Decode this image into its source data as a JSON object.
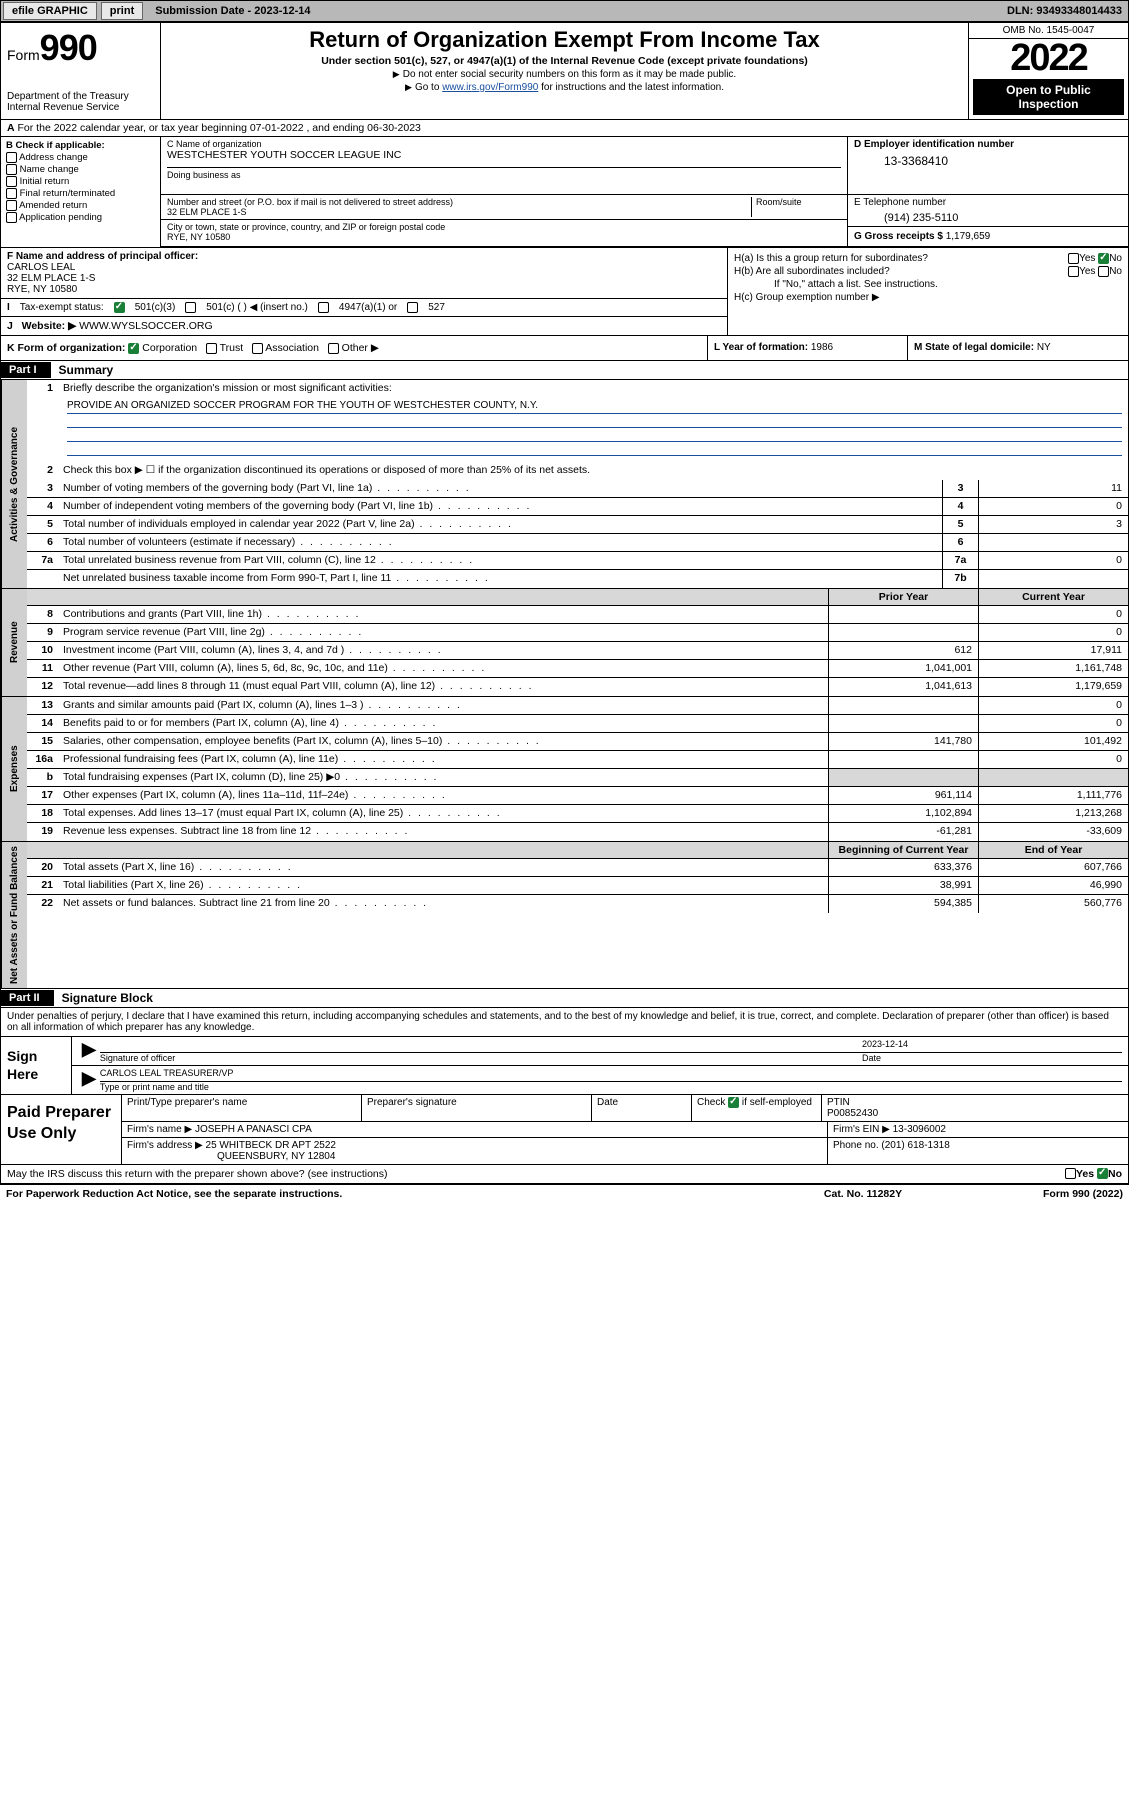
{
  "topbar": {
    "efile_label": "efile GRAPHIC",
    "print_btn": "print",
    "sub_date_label": "Submission Date - 2023-12-14",
    "dln": "DLN: 93493348014433"
  },
  "header": {
    "form_word": "Form",
    "form_num": "990",
    "dept": "Department of the Treasury",
    "irs": "Internal Revenue Service",
    "title": "Return of Organization Exempt From Income Tax",
    "subtitle": "Under section 501(c), 527, or 4947(a)(1) of the Internal Revenue Code (except private foundations)",
    "note1": "Do not enter social security numbers on this form as it may be made public.",
    "note2_pre": "Go to ",
    "note2_link": "www.irs.gov/Form990",
    "note2_post": " for instructions and the latest information.",
    "omb": "OMB No. 1545-0047",
    "year": "2022",
    "open": "Open to Public Inspection"
  },
  "line_a": "For the 2022 calendar year, or tax year beginning 07-01-2022   , and ending 06-30-2023",
  "col_b": {
    "label": "B Check if applicable:",
    "opts": [
      "Address change",
      "Name change",
      "Initial return",
      "Final return/terminated",
      "Amended return",
      "Application pending"
    ]
  },
  "col_c": {
    "name_label": "C Name of organization",
    "name": "WESTCHESTER YOUTH SOCCER LEAGUE INC",
    "dba_label": "Doing business as",
    "addr_label": "Number and street (or P.O. box if mail is not delivered to street address)",
    "room_label": "Room/suite",
    "addr": "32 ELM PLACE 1-S",
    "city_label": "City or town, state or province, country, and ZIP or foreign postal code",
    "city": "RYE, NY  10580",
    "ein_label": "D Employer identification number",
    "ein": "13-3368410",
    "tel_label": "E Telephone number",
    "tel": "(914) 235-5110",
    "gross_label": "G Gross receipts $",
    "gross": "1,179,659"
  },
  "block_f": {
    "label": "F  Name and address of principal officer:",
    "name": "CARLOS LEAL",
    "addr1": "32 ELM PLACE 1-S",
    "addr2": "RYE, NY  10580"
  },
  "block_h": {
    "ha": "H(a)  Is this a group return for subordinates?",
    "hb": "H(b)  Are all subordinates included?",
    "hb_note": "If \"No,\" attach a list. See instructions.",
    "hc": "H(c)  Group exemption number ▶",
    "yes": "Yes",
    "no": "No"
  },
  "block_i": {
    "label": "Tax-exempt status:",
    "o1": "501(c)(3)",
    "o2": "501(c) (  ) ◀ (insert no.)",
    "o3": "4947(a)(1) or",
    "o4": "527"
  },
  "block_j": {
    "label": "Website: ▶",
    "val": "WWW.WYSLSOCCER.ORG"
  },
  "block_k": {
    "label": "K Form of organization:",
    "o1": "Corporation",
    "o2": "Trust",
    "o3": "Association",
    "o4": "Other ▶"
  },
  "block_l": {
    "label": "L Year of formation:",
    "val": "1986"
  },
  "block_m": {
    "label": "M State of legal domicile:",
    "val": "NY"
  },
  "part1": {
    "hdr": "Part I",
    "title": "Summary",
    "l1_label": "Briefly describe the organization's mission or most significant activities:",
    "l1_text": "PROVIDE AN ORGANIZED SOCCER PROGRAM FOR THE YOUTH OF WESTCHESTER COUNTY, N.Y.",
    "l2": "Check this box ▶ ☐  if the organization discontinued its operations or disposed of more than 25% of its net assets.",
    "rows_gov": [
      {
        "n": "3",
        "t": "Number of voting members of the governing body (Part VI, line 1a)",
        "box": "3",
        "v": "11"
      },
      {
        "n": "4",
        "t": "Number of independent voting members of the governing body (Part VI, line 1b)",
        "box": "4",
        "v": "0"
      },
      {
        "n": "5",
        "t": "Total number of individuals employed in calendar year 2022 (Part V, line 2a)",
        "box": "5",
        "v": "3"
      },
      {
        "n": "6",
        "t": "Total number of volunteers (estimate if necessary)",
        "box": "6",
        "v": ""
      },
      {
        "n": "7a",
        "t": "Total unrelated business revenue from Part VIII, column (C), line 12",
        "box": "7a",
        "v": "0"
      },
      {
        "n": "",
        "t": "Net unrelated business taxable income from Form 990-T, Part I, line 11",
        "box": "7b",
        "v": ""
      }
    ],
    "col_prior": "Prior Year",
    "col_curr": "Current Year",
    "rows_rev": [
      {
        "n": "8",
        "t": "Contributions and grants (Part VIII, line 1h)",
        "p": "",
        "c": "0"
      },
      {
        "n": "9",
        "t": "Program service revenue (Part VIII, line 2g)",
        "p": "",
        "c": "0"
      },
      {
        "n": "10",
        "t": "Investment income (Part VIII, column (A), lines 3, 4, and 7d )",
        "p": "612",
        "c": "17,911"
      },
      {
        "n": "11",
        "t": "Other revenue (Part VIII, column (A), lines 5, 6d, 8c, 9c, 10c, and 11e)",
        "p": "1,041,001",
        "c": "1,161,748"
      },
      {
        "n": "12",
        "t": "Total revenue—add lines 8 through 11 (must equal Part VIII, column (A), line 12)",
        "p": "1,041,613",
        "c": "1,179,659"
      }
    ],
    "rows_exp": [
      {
        "n": "13",
        "t": "Grants and similar amounts paid (Part IX, column (A), lines 1–3 )",
        "p": "",
        "c": "0"
      },
      {
        "n": "14",
        "t": "Benefits paid to or for members (Part IX, column (A), line 4)",
        "p": "",
        "c": "0"
      },
      {
        "n": "15",
        "t": "Salaries, other compensation, employee benefits (Part IX, column (A), lines 5–10)",
        "p": "141,780",
        "c": "101,492"
      },
      {
        "n": "16a",
        "t": "Professional fundraising fees (Part IX, column (A), line 11e)",
        "p": "",
        "c": "0"
      },
      {
        "n": "b",
        "t": "Total fundraising expenses (Part IX, column (D), line 25) ▶0",
        "p": "—shade—",
        "c": "—shade—"
      },
      {
        "n": "17",
        "t": "Other expenses (Part IX, column (A), lines 11a–11d, 11f–24e)",
        "p": "961,114",
        "c": "1,111,776"
      },
      {
        "n": "18",
        "t": "Total expenses. Add lines 13–17 (must equal Part IX, column (A), line 25)",
        "p": "1,102,894",
        "c": "1,213,268"
      },
      {
        "n": "19",
        "t": "Revenue less expenses. Subtract line 18 from line 12",
        "p": "-61,281",
        "c": "-33,609"
      }
    ],
    "col_beg": "Beginning of Current Year",
    "col_end": "End of Year",
    "rows_net": [
      {
        "n": "20",
        "t": "Total assets (Part X, line 16)",
        "p": "633,376",
        "c": "607,766"
      },
      {
        "n": "21",
        "t": "Total liabilities (Part X, line 26)",
        "p": "38,991",
        "c": "46,990"
      },
      {
        "n": "22",
        "t": "Net assets or fund balances. Subtract line 21 from line 20",
        "p": "594,385",
        "c": "560,776"
      }
    ],
    "vtab_gov": "Activities & Governance",
    "vtab_rev": "Revenue",
    "vtab_exp": "Expenses",
    "vtab_net": "Net Assets or Fund Balances"
  },
  "part2": {
    "hdr": "Part II",
    "title": "Signature Block",
    "decl": "Under penalties of perjury, I declare that I have examined this return, including accompanying schedules and statements, and to the best of my knowledge and belief, it is true, correct, and complete. Declaration of preparer (other than officer) is based on all information of which preparer has any knowledge.",
    "sign_here": "Sign Here",
    "sig_officer": "Signature of officer",
    "sig_date": "Date",
    "sig_date_val": "2023-12-14",
    "sig_name": "CARLOS LEAL  TREASURER/VP",
    "sig_name_lbl": "Type or print name and title",
    "paid": "Paid Preparer Use Only",
    "ptname_lbl": "Print/Type preparer's name",
    "psig_lbl": "Preparer's signature",
    "pdate_lbl": "Date",
    "pcheck_lbl": "Check",
    "pself": "if self-employed",
    "ptin_lbl": "PTIN",
    "ptin": "P00852430",
    "firm_name_lbl": "Firm's name   ▶",
    "firm_name": "JOSEPH A PANASCI CPA",
    "firm_ein_lbl": "Firm's EIN ▶",
    "firm_ein": "13-3096002",
    "firm_addr_lbl": "Firm's address ▶",
    "firm_addr1": "25 WHITBECK DR APT 2522",
    "firm_addr2": "QUEENSBURY, NY  12804",
    "phone_lbl": "Phone no.",
    "phone": "(201) 618-1318",
    "discuss": "May the IRS discuss this return with the preparer shown above? (see instructions)",
    "paperwork": "For Paperwork Reduction Act Notice, see the separate instructions.",
    "catno": "Cat. No. 11282Y",
    "formno": "Form 990 (2022)"
  }
}
